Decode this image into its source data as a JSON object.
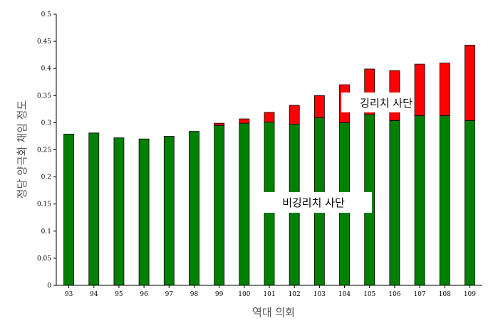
{
  "chart_data": {
    "type": "bar",
    "stacked": true,
    "xlabel": "역대 의회",
    "ylabel": "정당 양극화 채임 정도",
    "ylim": [
      0,
      0.5
    ],
    "yticks": [
      "0",
      "0.05",
      "0.1",
      "0.15",
      "0.2",
      "0.25",
      "0.3",
      "0.35",
      "0.4",
      "0.45",
      "0.5"
    ],
    "categories": [
      "93",
      "94",
      "95",
      "96",
      "97",
      "98",
      "99",
      "100",
      "101",
      "102",
      "103",
      "104",
      "105",
      "106",
      "107",
      "108",
      "109"
    ],
    "series": [
      {
        "values": [
          0.279,
          0.281,
          0.272,
          0.27,
          0.275,
          0.284,
          0.295,
          0.299,
          0.301,
          0.297,
          0.309,
          0.3,
          0.315,
          0.304,
          0.313,
          0.313,
          0.304
        ],
        "color": "#008000"
      },
      {
        "values": [
          0,
          0,
          0,
          0,
          0,
          0,
          0.004,
          0.008,
          0.018,
          0.035,
          0.041,
          0.07,
          0.084,
          0.092,
          0.095,
          0.097,
          0.139
        ],
        "color": "#ff0000"
      }
    ],
    "annotations": [
      {
        "id": "lynching",
        "text": "깅리치 사단"
      },
      {
        "id": "non-lynching",
        "text": "비깅리치 사단"
      }
    ],
    "grid": false
  }
}
